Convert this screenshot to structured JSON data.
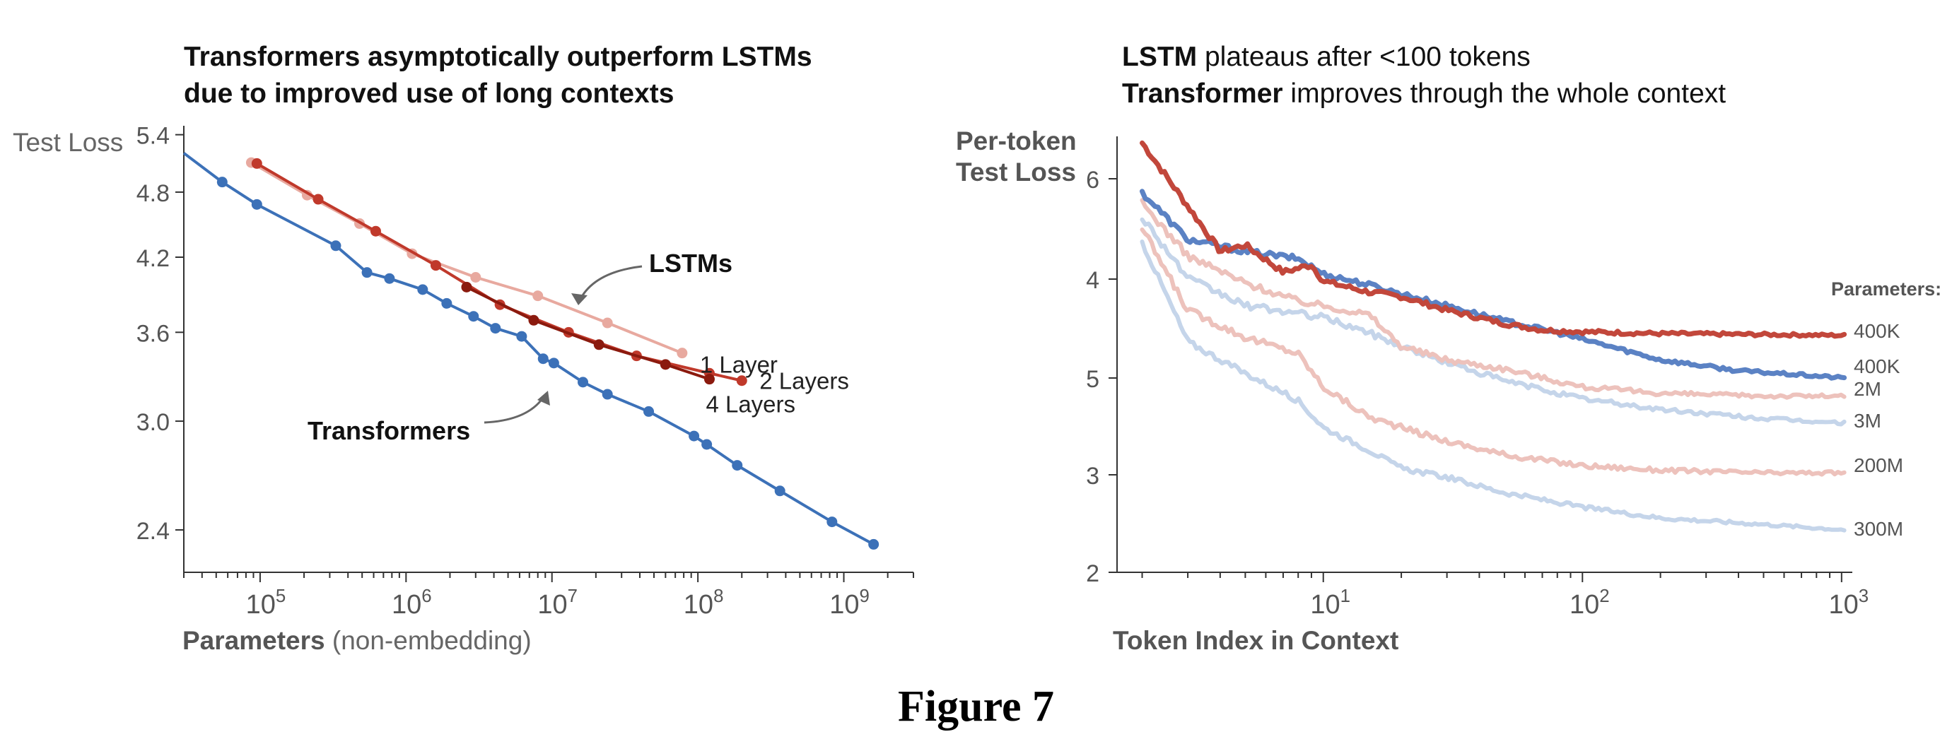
{
  "figure_caption": "Figure 7",
  "left_title": {
    "line1": "Transformers asymptotically outperform LSTMs",
    "line2": "due to improved use of long contexts"
  },
  "left_ylabel": "Test Loss",
  "left_xlabel": {
    "bold": "Parameters",
    "rest": " (non-embedding)"
  },
  "right_title": {
    "line1_bold": "LSTM",
    "line1_rest": " plateaus after <100 tokens",
    "line2_bold": "Transformer",
    "line2_rest": " improves through the whole context"
  },
  "right_ylabel": {
    "line1": "Per-token",
    "line2": "Test Loss"
  },
  "right_xlabel": "Token Index in Context",
  "colors": {
    "transformer": "#3c71b8",
    "lstm_1_layer": "#e8a99f",
    "lstm_2_layers": "#c0392b",
    "lstm_4_layers": "#8b1a0e",
    "lstm_param_dark": "#c2473b",
    "lstm_param_light": "#edc2bc",
    "transformer_param_dark": "#5b82c4",
    "transformer_param_light": "#c5d5ea"
  },
  "chart_data": [
    {
      "type": "line",
      "title": "Transformers asymptotically outperform LSTMs due to improved use of long contexts",
      "xlabel": "Parameters (non-embedding)",
      "ylabel": "Test Loss",
      "x_scale": "log",
      "y_scale": "log",
      "xlim": [
        30000,
        3000000000
      ],
      "ylim": [
        2.2,
        5.5
      ],
      "x_ticks": [
        100000,
        1000000,
        10000000,
        100000000,
        1000000000
      ],
      "x_tick_labels": [
        {
          "base": "10",
          "exp": "5"
        },
        {
          "base": "10",
          "exp": "6"
        },
        {
          "base": "10",
          "exp": "7"
        },
        {
          "base": "10",
          "exp": "8"
        },
        {
          "base": "10",
          "exp": "9"
        }
      ],
      "y_ticks": [
        2.4,
        3.0,
        3.6,
        4.2,
        4.8,
        5.4
      ],
      "y_tick_labels": [
        "2.4",
        "3.0",
        "3.6",
        "4.2",
        "4.8",
        "5.4"
      ],
      "grid": false,
      "annotations": [
        {
          "text": "LSTMs",
          "bold": true
        },
        {
          "text": "Transformers",
          "bold": true
        }
      ],
      "series": [
        {
          "name": "Transformers",
          "color_key": "transformer",
          "start_line_at_x": 30000,
          "start_line_y": 5.2,
          "x": [
            55000,
            95000,
            330000,
            540000,
            770000,
            1300000,
            1900000,
            2900000,
            4100000,
            6200000,
            8700000,
            10300000,
            16300000,
            24000000,
            46000000,
            94000000,
            115000000,
            186000000,
            365000000,
            830000000,
            1600000000
          ],
          "y": [
            4.9,
            4.68,
            4.3,
            4.07,
            4.02,
            3.93,
            3.82,
            3.72,
            3.63,
            3.57,
            3.41,
            3.38,
            3.25,
            3.17,
            3.06,
            2.91,
            2.86,
            2.74,
            2.6,
            2.44,
            2.33
          ]
        },
        {
          "name": "1 Layer",
          "color_key": "lstm_1_layer",
          "x": [
            87000,
            210000,
            480000,
            1100000,
            3000000,
            8000000,
            24000000,
            78000000
          ],
          "y": [
            5.1,
            4.77,
            4.5,
            4.23,
            4.03,
            3.88,
            3.67,
            3.45
          ]
        },
        {
          "name": "2 Layers",
          "color_key": "lstm_2_layers",
          "x": [
            95000,
            250000,
            620000,
            1600000,
            4400000,
            13000000,
            38000000,
            120000000,
            200000000
          ],
          "y": [
            5.09,
            4.73,
            4.43,
            4.13,
            3.81,
            3.6,
            3.43,
            3.31,
            3.26
          ]
        },
        {
          "name": "4 Layers",
          "color_key": "lstm_4_layers",
          "x": [
            2600000,
            7500000,
            21000000,
            60000000,
            120000000
          ],
          "y": [
            3.95,
            3.69,
            3.51,
            3.37,
            3.27
          ]
        }
      ],
      "series_labels": [
        "1 Layer",
        "2 Layers",
        "4 Layers"
      ]
    },
    {
      "type": "line",
      "title": "LSTM plateaus after <100 tokens / Transformer improves through the whole context",
      "xlabel": "Token Index in Context",
      "ylabel": "Per-token Test Loss",
      "x_scale": "log",
      "xlim": [
        1.6,
        1100
      ],
      "x_ticks": [
        10,
        100,
        1000
      ],
      "x_tick_labels": [
        {
          "base": "10",
          "exp": "1"
        },
        {
          "base": "10",
          "exp": "2"
        },
        {
          "base": "10",
          "exp": "3"
        }
      ],
      "y_ticks": [
        2,
        3,
        4,
        5,
        6
      ],
      "y_tick_labels": [
        "2",
        "3",
        "4",
        "5",
        "6"
      ],
      "grid": false,
      "legend_title": "Parameters:",
      "series": [
        {
          "label": "400K",
          "family": "lstm",
          "color_key": "lstm_param_dark",
          "width": 7,
          "points": [
            [
              2,
              6.75
            ],
            [
              3,
              6.05
            ],
            [
              4,
              5.55
            ],
            [
              5,
              5.62
            ],
            [
              7,
              5.32
            ],
            [
              9,
              5.4
            ],
            [
              10,
              5.22
            ],
            [
              15,
              5.1
            ],
            [
              20,
              5.05
            ],
            [
              30,
              4.9
            ],
            [
              50,
              4.75
            ],
            [
              70,
              4.68
            ],
            [
              100,
              4.66
            ],
            [
              200,
              4.64
            ],
            [
              500,
              4.63
            ],
            [
              1024,
              4.62
            ]
          ],
          "noise": 0.05
        },
        {
          "label": "400K",
          "family": "transformer",
          "color_key": "transformer_param_dark",
          "width": 7,
          "points": [
            [
              2,
              6.2
            ],
            [
              3,
              5.68
            ],
            [
              5,
              5.55
            ],
            [
              8,
              5.47
            ],
            [
              10,
              5.3
            ],
            [
              15,
              5.18
            ],
            [
              20,
              5.08
            ],
            [
              30,
              4.95
            ],
            [
              50,
              4.78
            ],
            [
              80,
              4.65
            ],
            [
              120,
              4.52
            ],
            [
              200,
              4.35
            ],
            [
              400,
              4.23
            ],
            [
              1024,
              4.15
            ]
          ],
          "noise": 0.05
        },
        {
          "label": "2M",
          "family": "lstm",
          "color_key": "lstm_param_light",
          "width": 6,
          "points": [
            [
              2,
              6.08
            ],
            [
              3,
              5.5
            ],
            [
              5,
              5.2
            ],
            [
              8,
              5.0
            ],
            [
              10,
              4.95
            ],
            [
              15,
              4.85
            ],
            [
              20,
              4.5
            ],
            [
              30,
              4.35
            ],
            [
              50,
              4.25
            ],
            [
              100,
              4.05
            ],
            [
              200,
              3.98
            ],
            [
              500,
              3.95
            ],
            [
              1024,
              3.95
            ]
          ],
          "noise": 0.06
        },
        {
          "label": "3M",
          "family": "transformer",
          "color_key": "transformer_param_light",
          "width": 6,
          "points": [
            [
              2,
              5.93
            ],
            [
              3,
              5.25
            ],
            [
              5,
              4.95
            ],
            [
              10,
              4.82
            ],
            [
              15,
              4.65
            ],
            [
              20,
              4.5
            ],
            [
              30,
              4.32
            ],
            [
              50,
              4.12
            ],
            [
              100,
              3.92
            ],
            [
              200,
              3.8
            ],
            [
              500,
              3.7
            ],
            [
              1024,
              3.65
            ]
          ],
          "noise": 0.06
        },
        {
          "label": "200M",
          "family": "lstm",
          "color_key": "lstm_param_light",
          "width": 6,
          "points": [
            [
              2,
              5.8
            ],
            [
              3,
              4.9
            ],
            [
              5,
              4.6
            ],
            [
              8,
              4.42
            ],
            [
              10,
              4.05
            ],
            [
              15,
              3.72
            ],
            [
              20,
              3.6
            ],
            [
              30,
              3.45
            ],
            [
              50,
              3.3
            ],
            [
              100,
              3.18
            ],
            [
              200,
              3.13
            ],
            [
              500,
              3.1
            ],
            [
              1024,
              3.1
            ]
          ],
          "noise": 0.06
        },
        {
          "label": "300M",
          "family": "transformer",
          "color_key": "transformer_param_light",
          "width": 6,
          "points": [
            [
              2,
              5.65
            ],
            [
              3,
              4.55
            ],
            [
              5,
              4.2
            ],
            [
              8,
              3.9
            ],
            [
              10,
              3.6
            ],
            [
              15,
              3.35
            ],
            [
              20,
              3.15
            ],
            [
              30,
              3.05
            ],
            [
              50,
              2.88
            ],
            [
              100,
              2.72
            ],
            [
              200,
              2.6
            ],
            [
              500,
              2.53
            ],
            [
              1024,
              2.47
            ]
          ],
          "noise": 0.05
        }
      ]
    }
  ]
}
